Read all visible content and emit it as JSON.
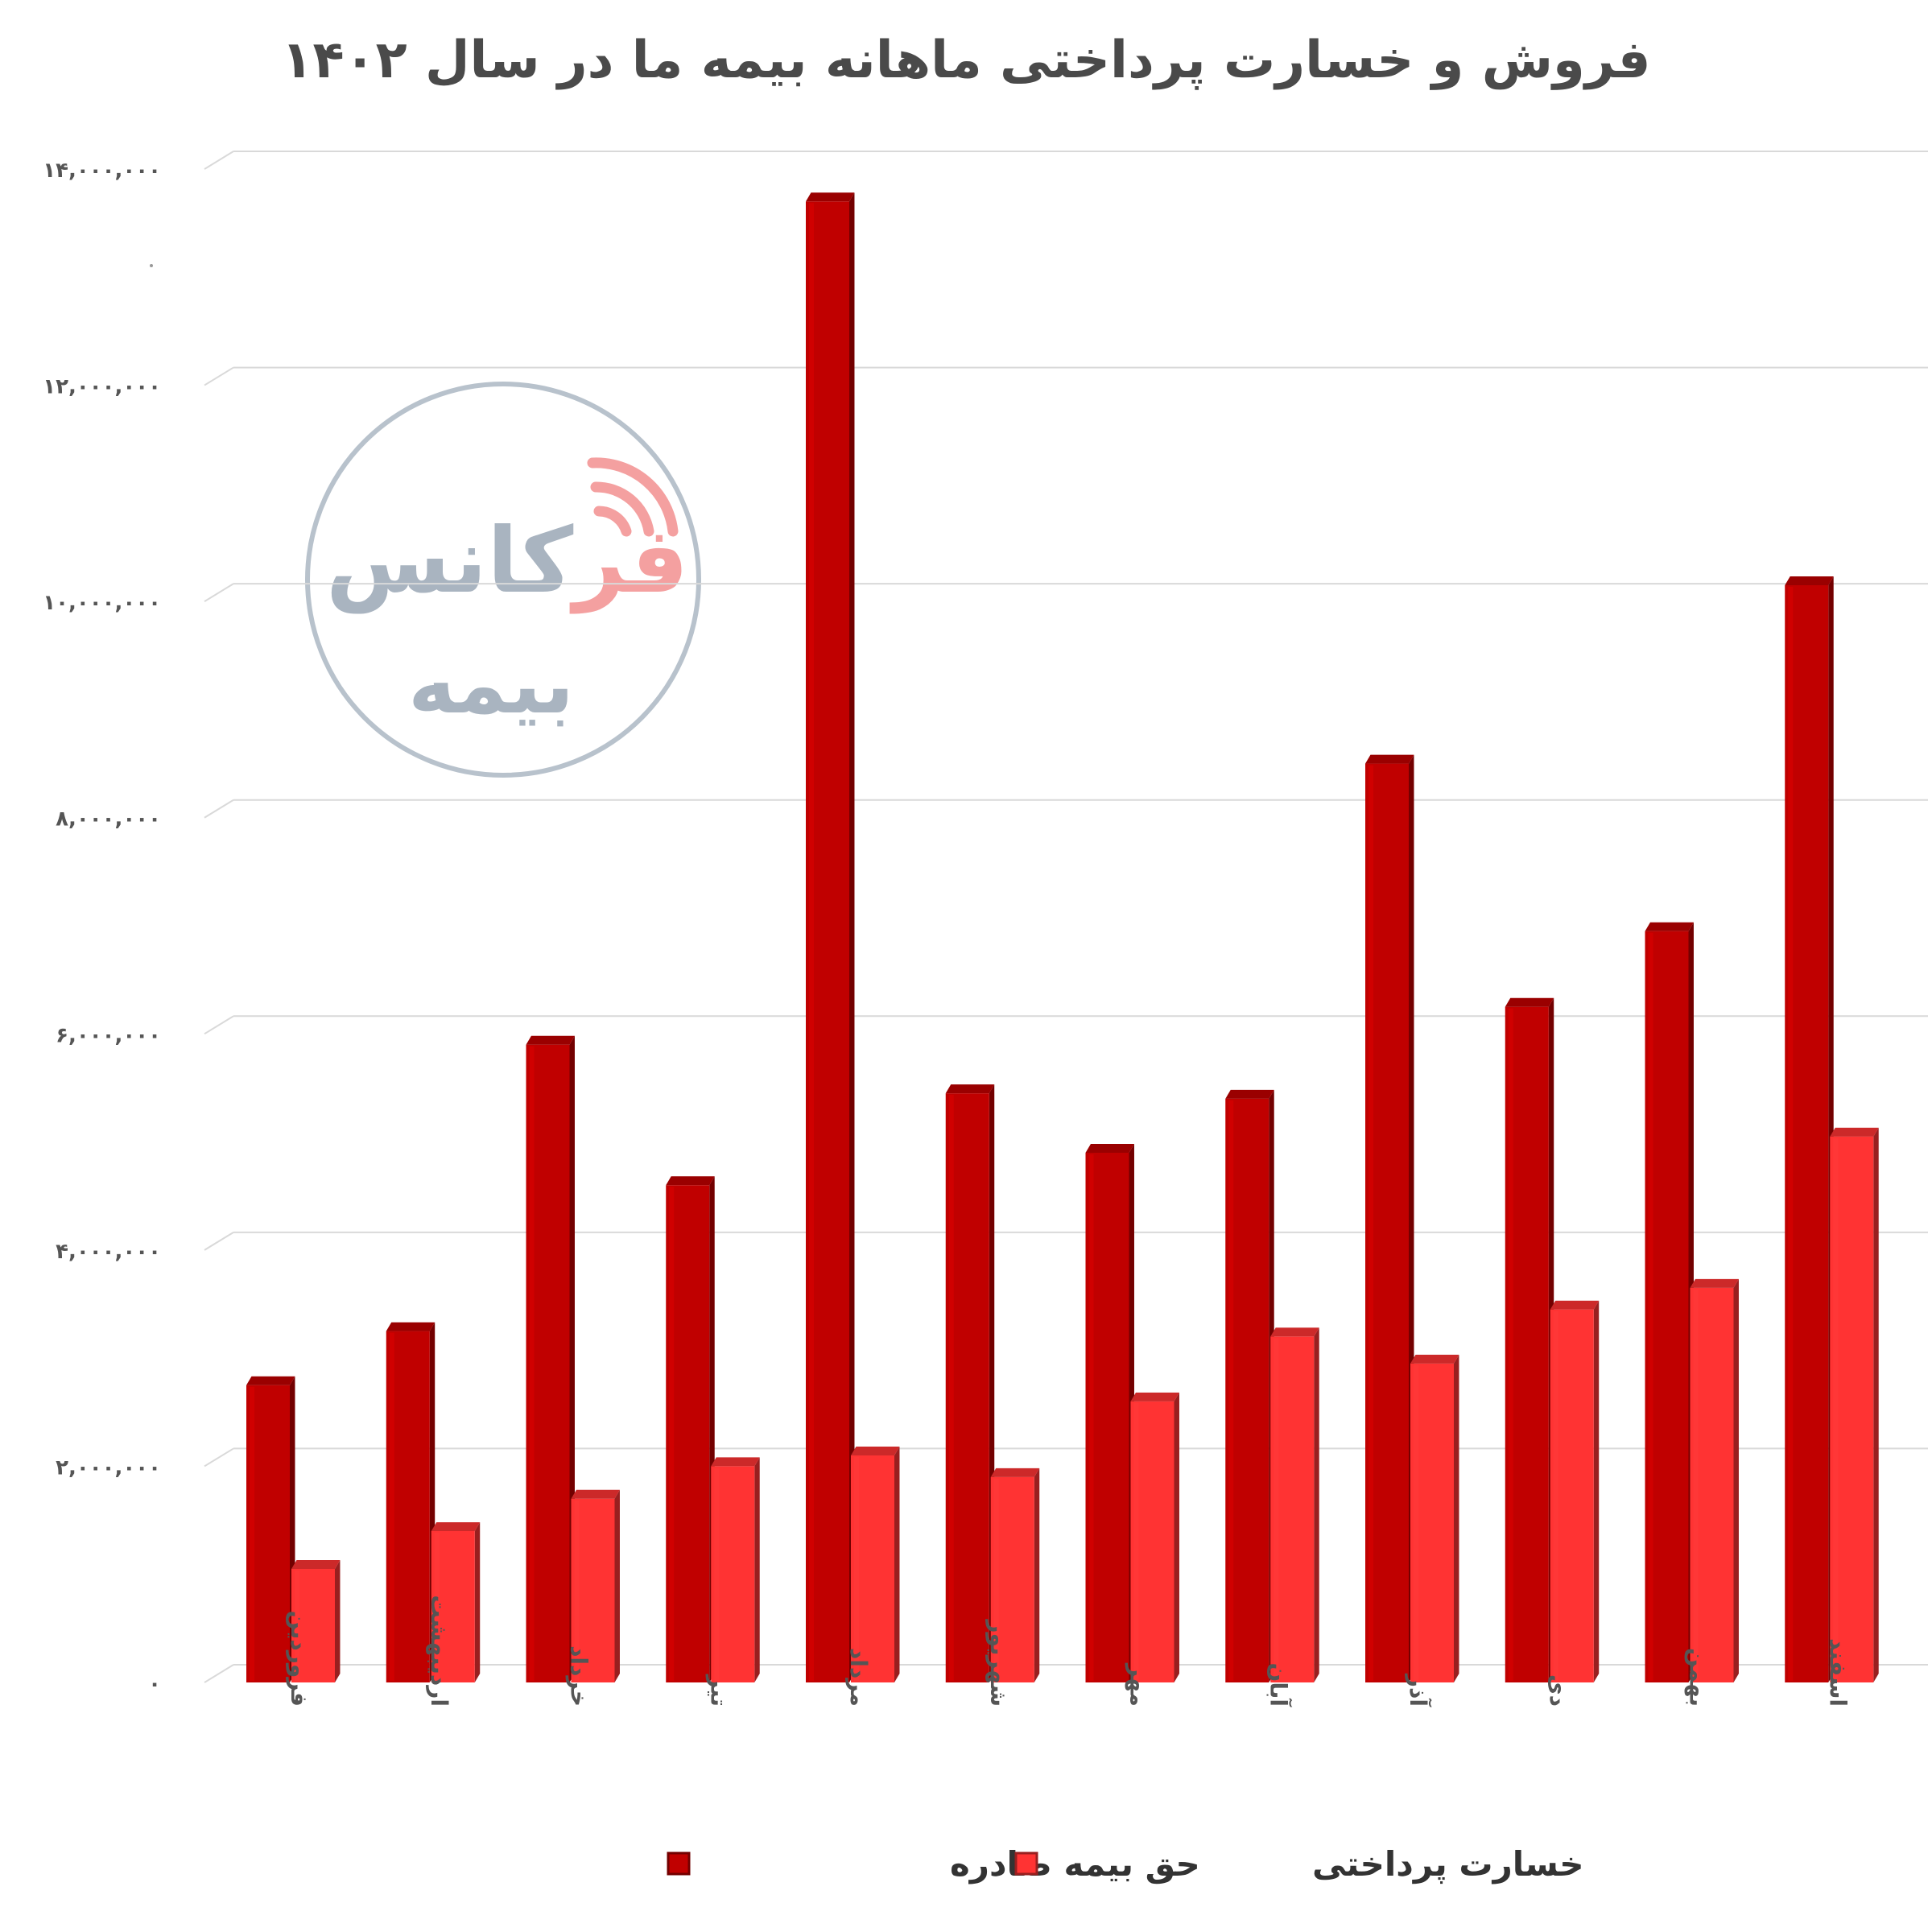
{
  "chart_data": {
    "type": "bar",
    "title": "فروش و خسارت پرداختی ماهانه بیمه ما در سال ۱۴۰۲",
    "categories": [
      "فروردین",
      "اردیبهشت",
      "خرداد",
      "تیر",
      "مرداد",
      "شهریور",
      "مهر",
      "آبان",
      "آذر",
      "دی",
      "بهمن",
      "اسفند"
    ],
    "series": [
      {
        "name": "حق بیمه صادره",
        "color": "#c00000",
        "values": [
          2750000,
          3250000,
          5900000,
          4600000,
          13700000,
          5450000,
          4900000,
          5400000,
          8500000,
          6250000,
          6950000,
          10150000
        ]
      },
      {
        "name": "خسارت پرداختی",
        "color": "#ff3333",
        "values": [
          1050000,
          1400000,
          1700000,
          2000000,
          2100000,
          1900000,
          2600000,
          3200000,
          2950000,
          3450000,
          3650000,
          5050000
        ]
      }
    ],
    "yticks": [
      0,
      2000000,
      4000000,
      6000000,
      8000000,
      10000000,
      12000000,
      14000000
    ],
    "ytick_labels": [
      "۰",
      "۲,۰۰۰,۰۰۰",
      "۴,۰۰۰,۰۰۰",
      "۶,۰۰۰,۰۰۰",
      "۸,۰۰۰,۰۰۰",
      "۱۰,۰۰۰,۰۰۰",
      "۱۲,۰۰۰,۰۰۰",
      "۱۴,۰۰۰,۰۰۰"
    ],
    "ylim": [
      0,
      14000000
    ],
    "xlabel": "",
    "ylabel": "",
    "grid": true,
    "legend_position": "bottom"
  },
  "watermark": {
    "line1_colored": "فر",
    "line1_gray": "کانس",
    "line2": "بیمه",
    "accent_color": "#f4a0a0",
    "gray_color": "#a9b4c0"
  }
}
